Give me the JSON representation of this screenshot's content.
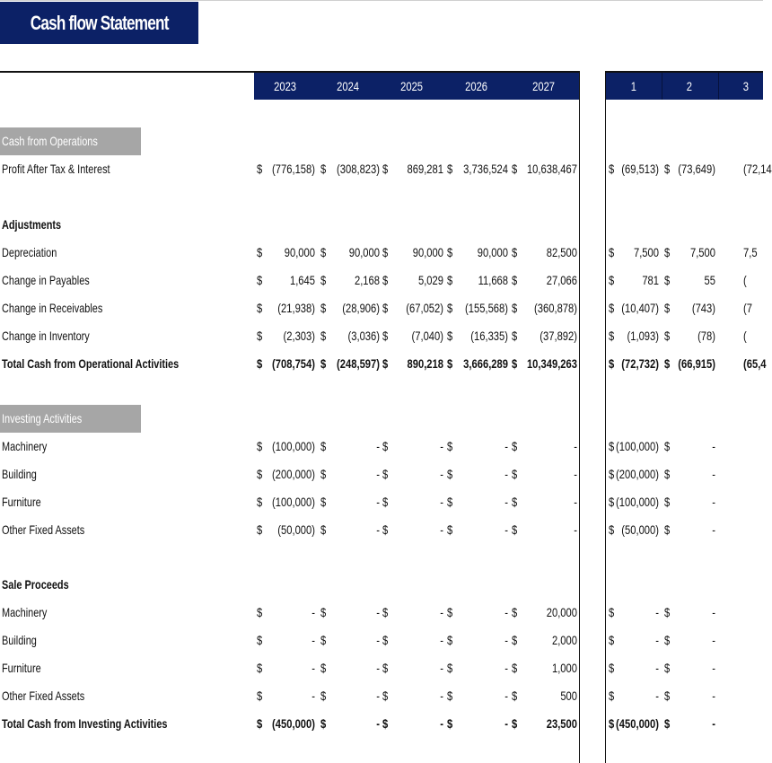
{
  "title": "Cash flow Statement",
  "years": [
    "2023",
    "2024",
    "2025",
    "2026",
    "2027"
  ],
  "months": [
    "1",
    "2",
    "3"
  ],
  "currency": "$",
  "colors": {
    "header_navy": "#0c2166",
    "section_gray": "#a6a6a6"
  },
  "rows": [
    {
      "type": "section",
      "label": "Cash from Operations"
    },
    {
      "type": "data",
      "label": "Profit After Tax & Interest",
      "years": [
        "(776,158)",
        "(308,823)",
        "869,281",
        "3,736,524",
        "10,638,467"
      ],
      "months": [
        "(69,513)",
        "(73,649)",
        "(72,14"
      ]
    },
    {
      "type": "blank"
    },
    {
      "type": "heading",
      "label": "Adjustments"
    },
    {
      "type": "data",
      "label": "Depreciation",
      "years": [
        "90,000",
        "90,000",
        "90,000",
        "90,000",
        "82,500"
      ],
      "months": [
        "7,500",
        "7,500",
        "7,5"
      ]
    },
    {
      "type": "data",
      "label": "Change in Payables",
      "years": [
        "1,645",
        "2,168",
        "5,029",
        "11,668",
        "27,066"
      ],
      "months": [
        "781",
        "55",
        "("
      ]
    },
    {
      "type": "data",
      "label": "Change in Receivables",
      "years": [
        "(21,938)",
        "(28,906)",
        "(67,052)",
        "(155,568)",
        "(360,878)"
      ],
      "months": [
        "(10,407)",
        "(743)",
        "(7"
      ]
    },
    {
      "type": "data",
      "label": "Change in Inventory",
      "years": [
        "(2,303)",
        "(3,036)",
        "(7,040)",
        "(16,335)",
        "(37,892)"
      ],
      "months": [
        "(1,093)",
        "(78)",
        "("
      ]
    },
    {
      "type": "total",
      "label": "Total Cash from Operational Activities",
      "years": [
        "(708,754)",
        "(248,597)",
        "890,218",
        "3,666,289",
        "10,349,263"
      ],
      "months": [
        "(72,732)",
        "(66,915)",
        "(65,4"
      ]
    },
    {
      "type": "blank"
    },
    {
      "type": "section",
      "label": "Investing Activities"
    },
    {
      "type": "data",
      "label": "Machinery",
      "years": [
        "(100,000)",
        "-",
        "-",
        "-",
        "-"
      ],
      "months": [
        "(100,000)",
        "-",
        ""
      ]
    },
    {
      "type": "data",
      "label": "Building",
      "years": [
        "(200,000)",
        "-",
        "-",
        "-",
        "-"
      ],
      "months": [
        "(200,000)",
        "-",
        ""
      ]
    },
    {
      "type": "data",
      "label": "Furniture",
      "years": [
        "(100,000)",
        "-",
        "-",
        "-",
        "-"
      ],
      "months": [
        "(100,000)",
        "-",
        ""
      ]
    },
    {
      "type": "data",
      "label": "Other Fixed Assets",
      "years": [
        "(50,000)",
        "-",
        "-",
        "-",
        "-"
      ],
      "months": [
        "(50,000)",
        "-",
        ""
      ]
    },
    {
      "type": "blank"
    },
    {
      "type": "heading",
      "label": "Sale Proceeds"
    },
    {
      "type": "data",
      "label": "Machinery",
      "years": [
        "-",
        "-",
        "-",
        "-",
        "20,000"
      ],
      "months": [
        "-",
        "-",
        ""
      ]
    },
    {
      "type": "data",
      "label": "Building",
      "years": [
        "-",
        "-",
        "-",
        "-",
        "2,000"
      ],
      "months": [
        "-",
        "-",
        ""
      ]
    },
    {
      "type": "data",
      "label": "Furniture",
      "years": [
        "-",
        "-",
        "-",
        "-",
        "1,000"
      ],
      "months": [
        "-",
        "-",
        ""
      ]
    },
    {
      "type": "data",
      "label": "Other Fixed Assets",
      "years": [
        "-",
        "-",
        "-",
        "-",
        "500"
      ],
      "months": [
        "-",
        "-",
        ""
      ]
    },
    {
      "type": "total",
      "label": "Total Cash from Investing Activities",
      "years": [
        "(450,000)",
        "-",
        "-",
        "-",
        "23,500"
      ],
      "months": [
        "(450,000)",
        "-",
        ""
      ]
    }
  ]
}
